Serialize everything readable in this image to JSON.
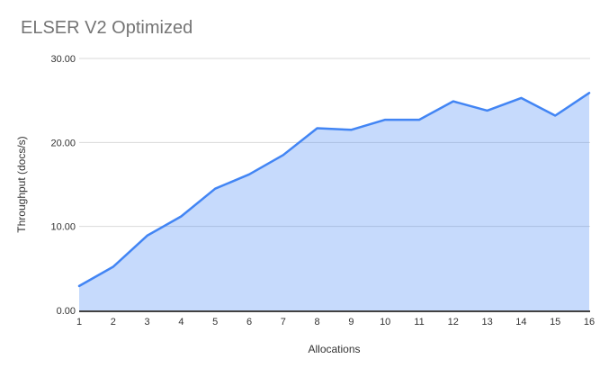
{
  "chart_data": {
    "type": "area",
    "title": "ELSER V2 Optimized",
    "xlabel": "Allocations",
    "ylabel": "Throughput (docs/s)",
    "categories": [
      "1",
      "2",
      "3",
      "4",
      "5",
      "6",
      "7",
      "8",
      "9",
      "10",
      "11",
      "12",
      "13",
      "14",
      "15",
      "16"
    ],
    "series": [
      {
        "values": [
          2.9,
          5.2,
          8.9,
          11.2,
          14.5,
          16.2,
          18.5,
          21.7,
          21.5,
          22.7,
          22.7,
          24.9,
          23.8,
          25.3,
          23.2,
          25.9
        ]
      }
    ],
    "ylim": [
      0,
      30
    ],
    "yticks": [
      "0.00",
      "10.00",
      "20.00",
      "30.00"
    ],
    "grid": "horizontal",
    "legend": "none"
  },
  "colors": {
    "series_line": "#4285f4",
    "series_fill": "rgba(66,133,244,0.30)",
    "gridline": "#d9d9d9",
    "axis_line": "#424242",
    "title_text": "#757575",
    "tick_text": "#333333",
    "axis_title_text": "#333333"
  }
}
